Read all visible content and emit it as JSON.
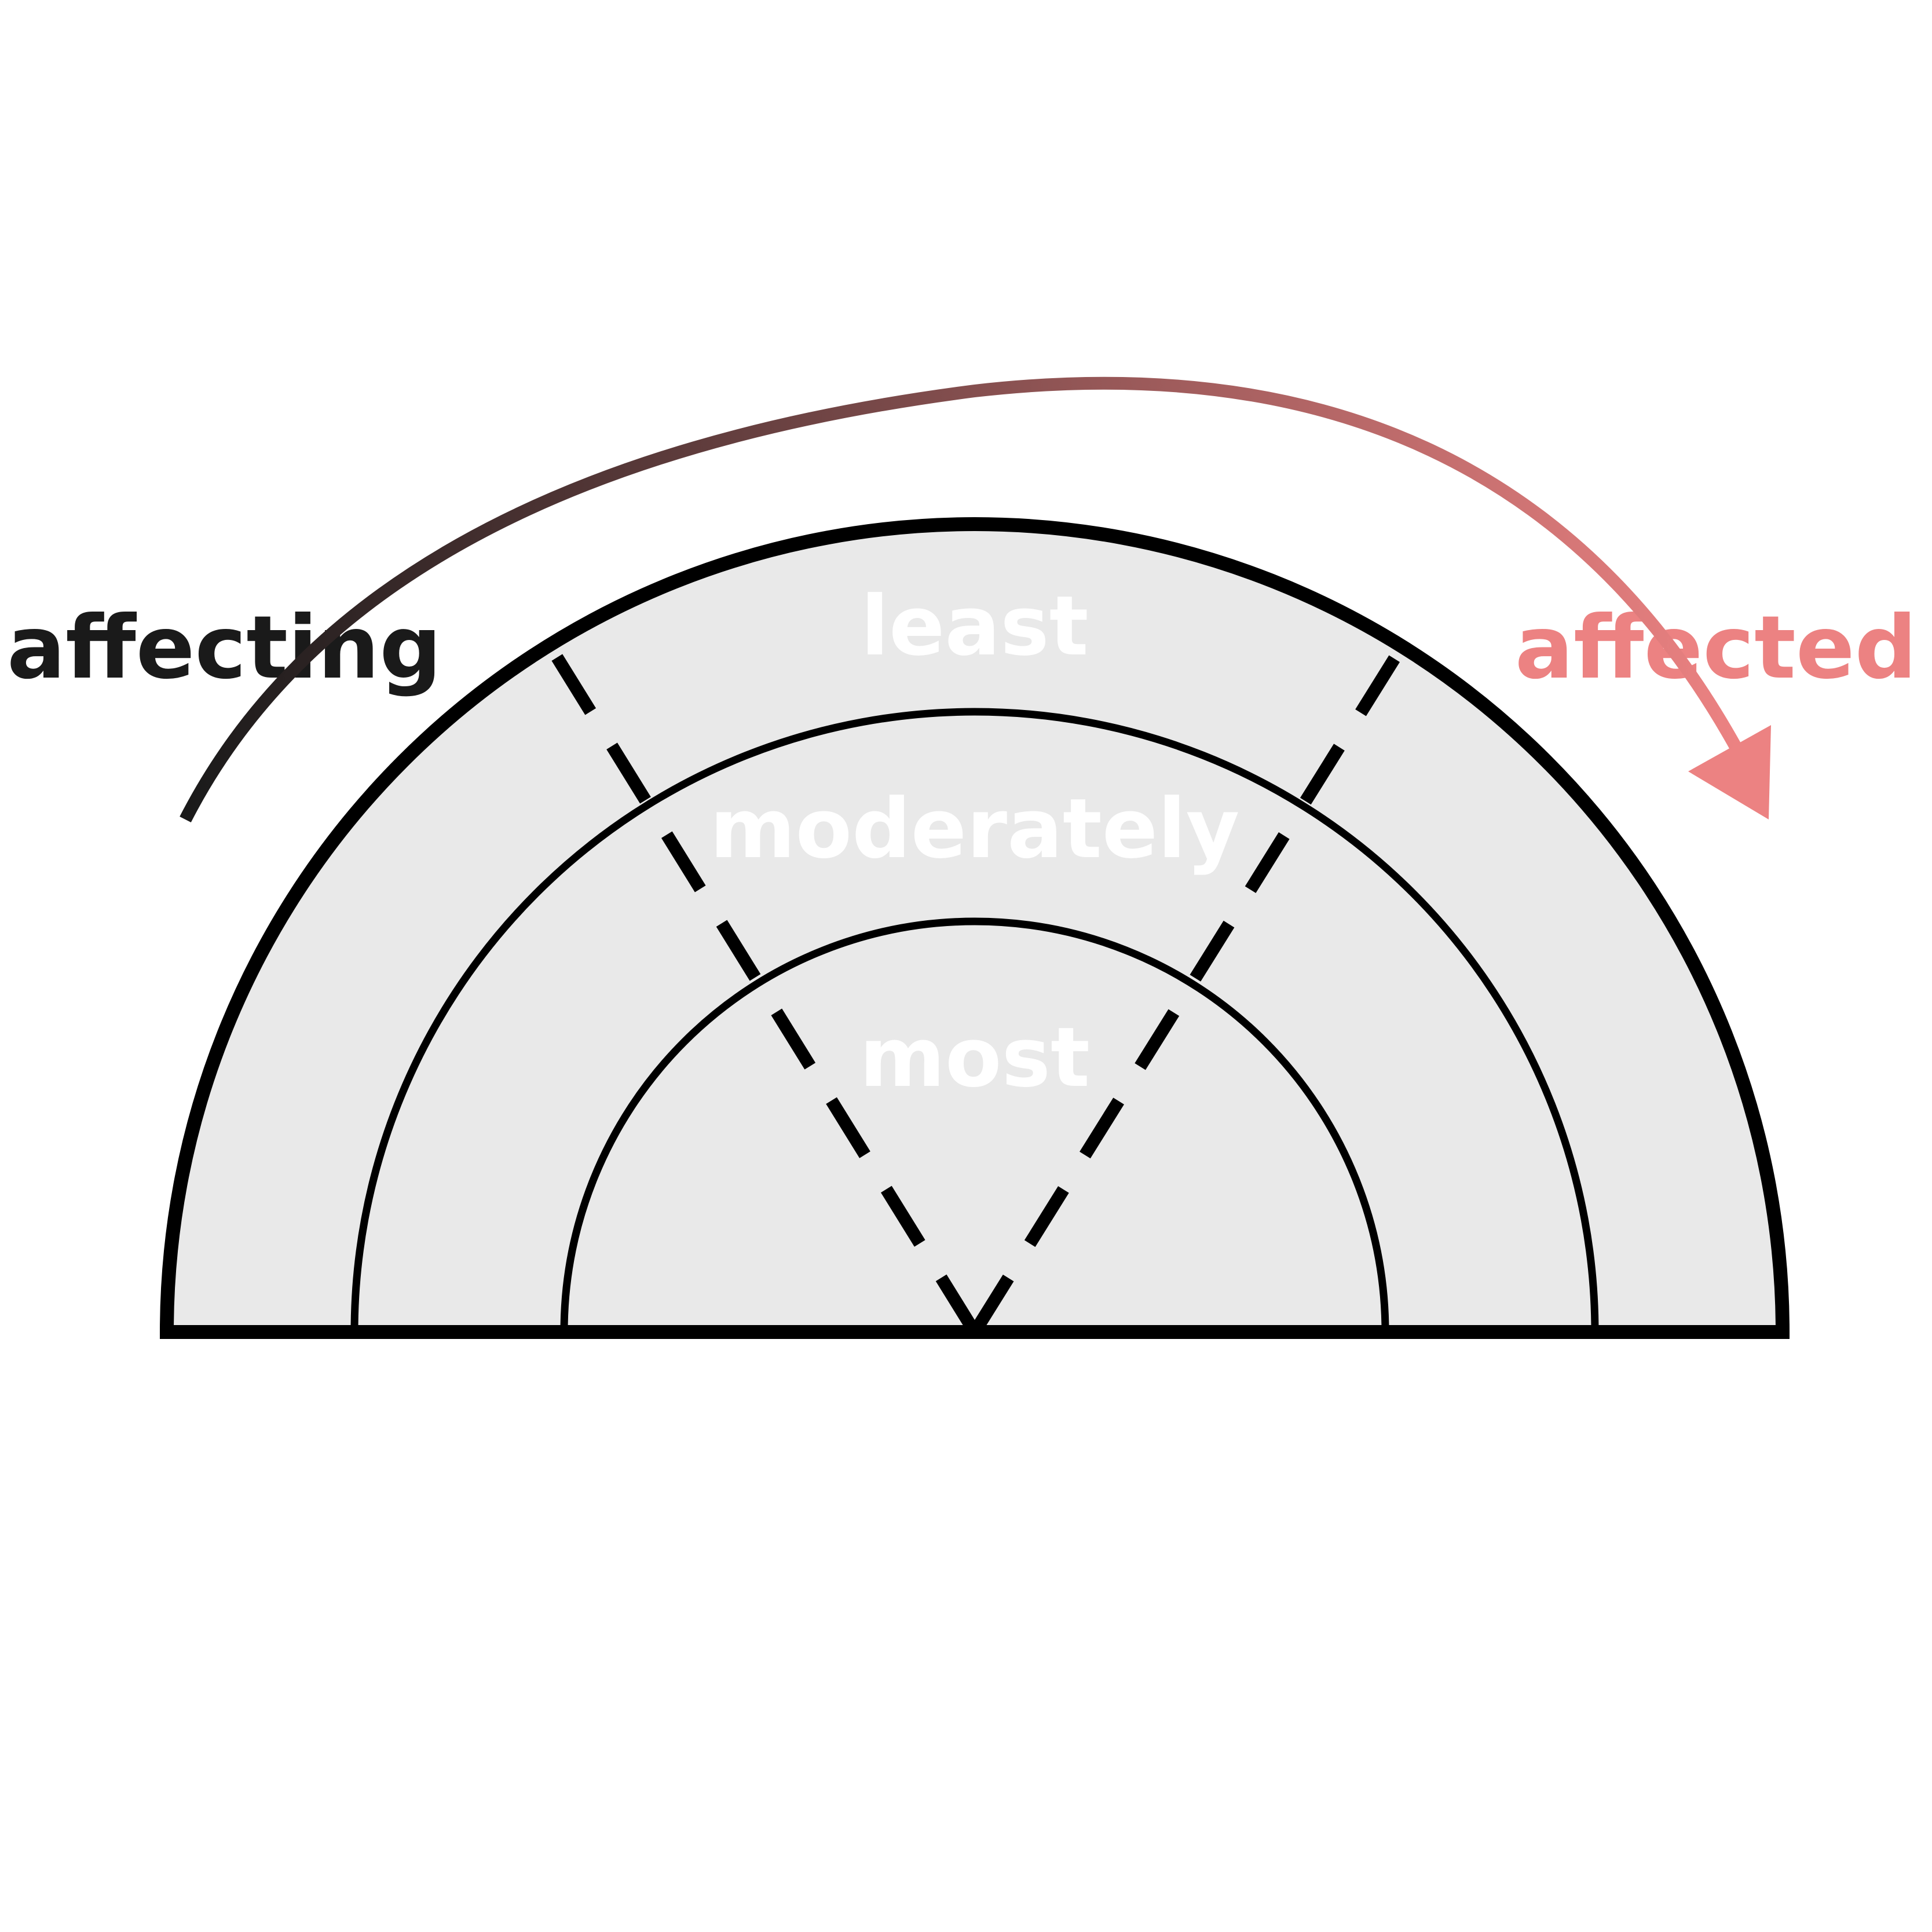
{
  "labels": {
    "left": "affecting",
    "right": "affected",
    "outer_ring": "least",
    "middle_ring": "moderately",
    "inner_ring": "most"
  },
  "colors": {
    "background": "#ffffff",
    "fill": "#e9e9e9",
    "stroke": "#000000",
    "ring_text": "#ffffff",
    "left_text": "#1a1a1a",
    "arrow_start": "#1a1a1a",
    "arrow_end": "#ec8282",
    "right_text": "#ec8282"
  }
}
